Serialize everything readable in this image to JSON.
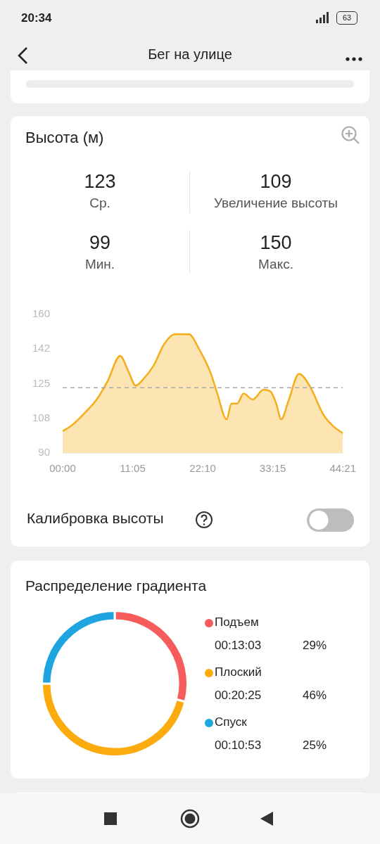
{
  "chart_data": [
    {
      "type": "area",
      "title": "Высота (м)",
      "x": [
        0,
        1.46,
        3.71,
        5.39,
        7.07,
        9.1,
        10.44,
        11.57,
        12.69,
        14.37,
        16.06,
        17.74,
        19.99,
        21.67,
        23.36,
        24.48,
        25.94,
        26.73,
        27.63,
        28.64,
        30.1,
        31.78,
        32.91,
        33.8,
        34.59,
        35.71,
        37.4,
        39.08,
        41.33,
        43.01,
        44.35
      ],
      "values": [
        101,
        104,
        111,
        117,
        126,
        139,
        131,
        124,
        127,
        134,
        145,
        150,
        150,
        142,
        131,
        120,
        107,
        115,
        115,
        120,
        117,
        122,
        121,
        115,
        107,
        116,
        130,
        124,
        109,
        103,
        100
      ],
      "color": "#f5ad1c",
      "xlim": [
        0,
        44.35
      ],
      "xticks": [
        {
          "value": 0,
          "label": "00:00"
        },
        {
          "value": 11.083,
          "label": "11:05"
        },
        {
          "value": 22.167,
          "label": "22:10"
        },
        {
          "value": 33.25,
          "label": "33:15"
        },
        {
          "value": 44.35,
          "label": "44:21"
        }
      ],
      "ylim": [
        90,
        160
      ],
      "yticks": [
        90,
        {
          "value": 107.5,
          "label": "108"
        },
        125,
        {
          "value": 142.5,
          "label": "142"
        },
        160
      ],
      "ref_lines": [
        {
          "axis": "y",
          "value": 123,
          "color": "#aaaaaa",
          "line_style": "dashed"
        }
      ],
      "grid": false,
      "marker": "none",
      "annotations": [
        "20:34",
        "63",
        "Бег на улице",
        "123",
        "Ср.",
        "109",
        "Увеличение высоты",
        "99",
        "Мин.",
        "150",
        "Макс.",
        "Калибровка высоты"
      ]
    },
    {
      "type": "donut",
      "title": "Распределение градиента",
      "categories": [
        "Подъем",
        "Плоский",
        "Спуск"
      ],
      "values": [
        29,
        46,
        25
      ],
      "colors": [
        "#f65c5c",
        "#fbab0e",
        "#1ea5e0"
      ],
      "legend": "right",
      "annotations": [
        "00:13:03",
        "29%",
        "00:20:25",
        "46%",
        "00:10:53",
        "25%"
      ]
    }
  ]
}
